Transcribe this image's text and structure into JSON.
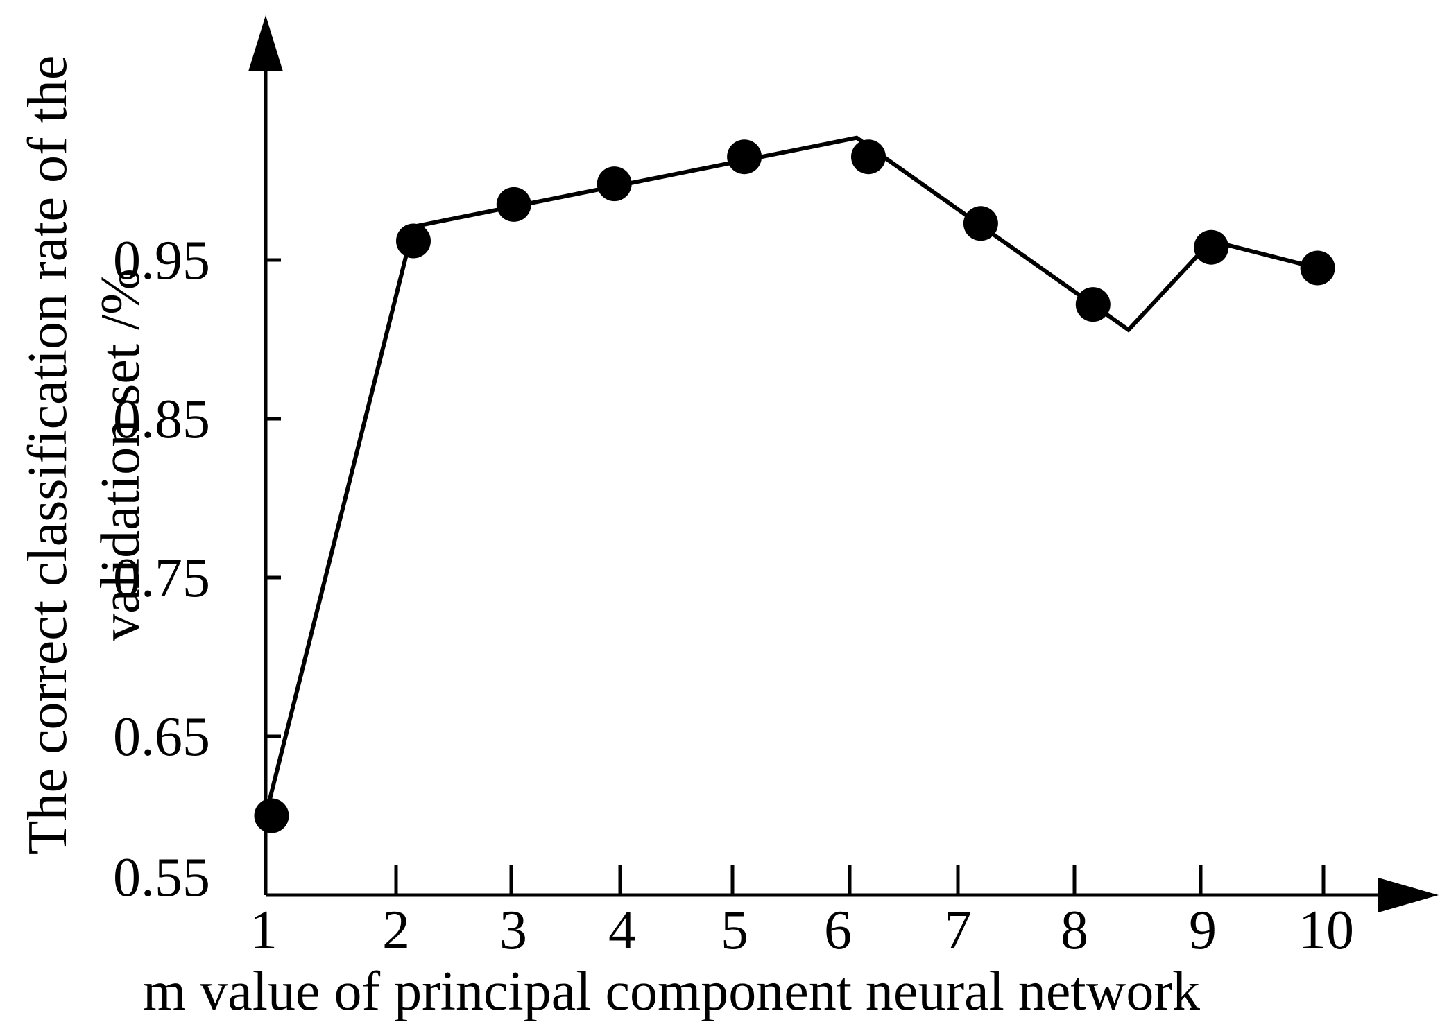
{
  "chart_data": {
    "type": "line",
    "title": "",
    "xlabel": "m value of principal component neural network",
    "ylabel": [
      "The correct classification rate of the",
      "validation set /%"
    ],
    "x_ticks": [
      "1",
      "2",
      "3",
      "4",
      "5",
      "6",
      "7",
      "8",
      "9",
      "10"
    ],
    "y_ticks": [
      "0.55",
      "0.65",
      "0.75",
      "0.85",
      "0.95"
    ],
    "y_tick_values": [
      0.55,
      0.65,
      0.75,
      0.85,
      0.95
    ],
    "xlim": [
      1,
      10
    ],
    "ylim": [
      0.55,
      1.05
    ],
    "grid": false,
    "legend": false,
    "line_color": "#000000",
    "marker_color": "#000000",
    "series": [
      {
        "line": {
          "x": [
            1.0,
            2.25,
            6.0,
            8.3,
            9.0,
            9.9
          ],
          "y": [
            0.6,
            0.971,
            1.027,
            0.906,
            0.962,
            0.945
          ]
        },
        "markers": {
          "x": [
            1.05,
            2.25,
            3.1,
            3.95,
            5.05,
            6.1,
            7.05,
            8.0,
            9.0,
            9.9
          ],
          "y": [
            0.6,
            0.962,
            0.985,
            0.998,
            1.015,
            1.015,
            0.973,
            0.922,
            0.958,
            0.945
          ]
        }
      }
    ]
  }
}
